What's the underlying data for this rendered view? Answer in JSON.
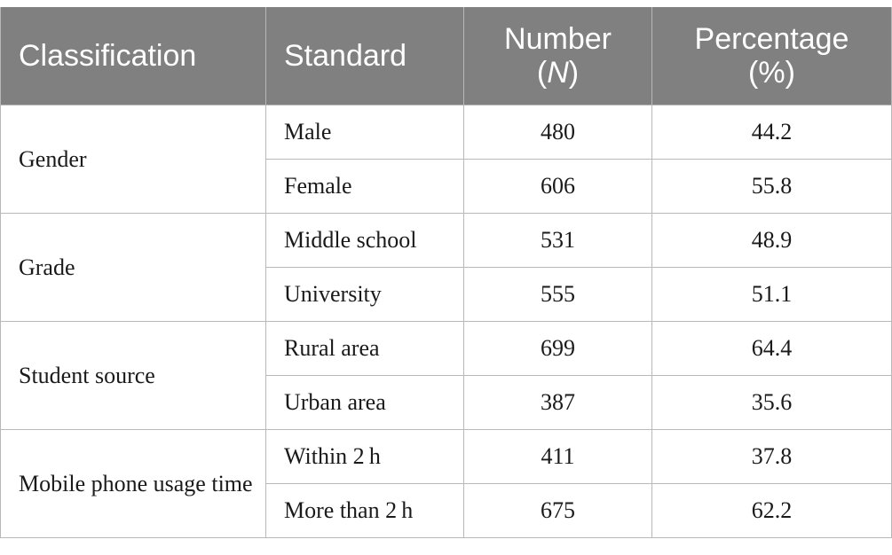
{
  "headers": {
    "classification": "Classification",
    "standard": "Standard",
    "number_line1": "Number",
    "number_line2": "N",
    "percentage_line1": "Percentage",
    "percentage_line2": "(%)"
  },
  "groups": [
    {
      "classification": "Gender",
      "rows": [
        {
          "standard": "Male",
          "number": "480",
          "percentage": "44.2"
        },
        {
          "standard": "Female",
          "number": "606",
          "percentage": "55.8"
        }
      ]
    },
    {
      "classification": "Grade",
      "rows": [
        {
          "standard": "Middle school",
          "number": "531",
          "percentage": "48.9"
        },
        {
          "standard": "University",
          "number": "555",
          "percentage": "51.1"
        }
      ]
    },
    {
      "classification": "Student source",
      "rows": [
        {
          "standard": "Rural area",
          "number": "699",
          "percentage": "64.4"
        },
        {
          "standard": "Urban area",
          "number": "387",
          "percentage": "35.6"
        }
      ]
    },
    {
      "classification": "Mobile phone usage time",
      "rows": [
        {
          "standard": "Within 2 h",
          "number": "411",
          "percentage": "37.8"
        },
        {
          "standard": "More than 2 h",
          "number": "675",
          "percentage": "62.2"
        }
      ]
    }
  ]
}
